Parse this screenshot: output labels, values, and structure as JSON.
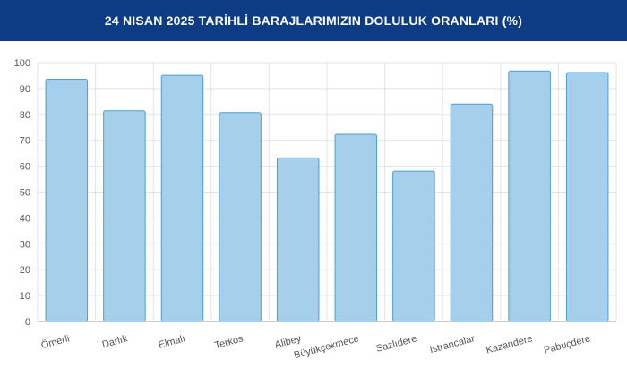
{
  "header": {
    "title": "24 NISAN 2025 TARİHLİ BARAJLARIMIZIN DOLULUK ORANLARI (%)"
  },
  "colors": {
    "header_bg": "#0d3c85",
    "bar_fill": "#a6cfeb",
    "bar_stroke": "#4a9fd4",
    "grid": "#e3e3e3",
    "axis": "#9a9a9a"
  },
  "chart_data": {
    "type": "bar",
    "title": "24 NISAN 2025 TARİHLİ BARAJLARIMIZIN DOLULUK ORANLARI (%)",
    "categories": [
      "Ömerli",
      "Darlık",
      "Elmalı",
      "Terkos",
      "Alibey",
      "Büyükçekmece",
      "Sazlıdere",
      "Istrancalar",
      "Kazandere",
      "Pabuçdere"
    ],
    "values": [
      93.6,
      81.4,
      95.1,
      80.7,
      63.2,
      72.3,
      58.1,
      84.0,
      96.8,
      96.2
    ],
    "xlabel": "",
    "ylabel": "",
    "ylim": [
      0,
      100
    ],
    "yticks": [
      "0",
      "10",
      "20",
      "30",
      "40",
      "50",
      "60",
      "70",
      "80",
      "90",
      "100"
    ],
    "grid": true,
    "legend": "none"
  }
}
